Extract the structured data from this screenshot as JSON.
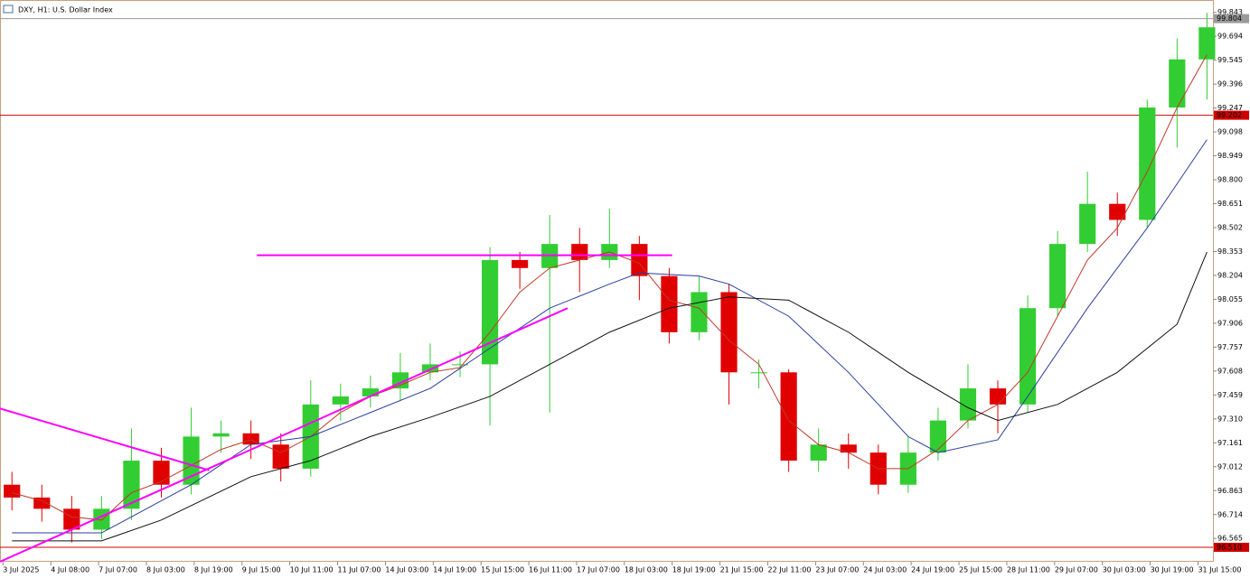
{
  "chart_data": {
    "type": "candlestick",
    "title": "DXY, H1:  U.S. Dollar Index",
    "up_color": "#32cd32",
    "down_color": "#e00000",
    "xlim": [
      -4,
      402
    ],
    "ylim": [
      96.42,
      99.92
    ],
    "x": [
      0,
      10,
      20,
      30,
      40,
      50,
      60,
      70,
      80,
      90,
      100,
      110,
      120,
      130,
      140,
      150,
      160,
      170,
      180,
      190,
      200,
      210,
      220,
      230,
      240,
      250,
      260,
      270,
      280,
      290,
      300,
      310,
      320,
      330,
      340,
      350,
      360,
      370,
      380,
      390,
      400
    ],
    "candles": {
      "open": [
        96.9,
        96.82,
        96.75,
        96.62,
        96.75,
        97.05,
        96.9,
        97.2,
        97.22,
        97.15,
        97.0,
        97.4,
        97.45,
        97.5,
        97.6,
        97.65,
        97.65,
        98.3,
        98.25,
        98.4,
        98.3,
        98.4,
        98.2,
        97.85,
        98.1,
        97.6,
        97.6,
        97.05,
        97.15,
        97.1,
        96.9,
        97.1,
        97.3,
        97.5,
        97.4,
        98.0,
        98.4,
        98.65,
        98.55,
        99.25,
        99.55
      ],
      "high": [
        96.98,
        96.9,
        96.83,
        96.83,
        97.25,
        97.13,
        97.38,
        97.3,
        97.3,
        97.22,
        97.55,
        97.53,
        97.58,
        97.72,
        97.78,
        97.73,
        98.38,
        98.35,
        98.58,
        98.5,
        98.62,
        98.45,
        98.25,
        98.2,
        98.15,
        97.68,
        97.62,
        97.25,
        97.22,
        97.15,
        97.2,
        97.38,
        97.65,
        97.55,
        98.08,
        98.48,
        98.85,
        98.72,
        99.3,
        99.68,
        99.84
      ],
      "low": [
        96.74,
        96.67,
        96.54,
        96.56,
        96.68,
        96.82,
        96.84,
        97.1,
        97.06,
        96.92,
        96.95,
        97.3,
        97.38,
        97.42,
        97.55,
        97.57,
        97.27,
        98.12,
        97.35,
        98.1,
        98.25,
        98.05,
        97.78,
        97.8,
        97.4,
        97.5,
        96.98,
        96.98,
        97.0,
        96.84,
        96.85,
        97.05,
        97.25,
        97.22,
        97.35,
        97.95,
        98.35,
        98.45,
        98.5,
        99.0,
        99.3
      ],
      "close": [
        96.82,
        96.75,
        96.62,
        96.75,
        97.05,
        96.9,
        97.2,
        97.22,
        97.15,
        97.0,
        97.4,
        97.45,
        97.5,
        97.6,
        97.65,
        97.65,
        98.3,
        98.25,
        98.4,
        98.3,
        98.4,
        98.2,
        97.85,
        98.1,
        97.6,
        97.6,
        97.05,
        97.15,
        97.1,
        96.9,
        97.1,
        97.3,
        97.5,
        97.4,
        98.0,
        98.4,
        98.65,
        98.55,
        99.25,
        99.55,
        99.75
      ]
    },
    "series": [
      {
        "color": "#c0392b",
        "x": [
          0,
          10,
          20,
          30,
          40,
          50,
          60,
          70,
          80,
          90,
          100,
          110,
          120,
          130,
          140,
          150,
          160,
          170,
          180,
          190,
          200,
          210,
          220,
          230,
          240,
          250,
          260,
          270,
          280,
          290,
          300,
          310,
          320,
          330,
          340,
          350,
          360,
          370,
          380,
          390,
          400
        ],
        "values": [
          96.85,
          96.8,
          96.7,
          96.68,
          96.85,
          96.92,
          97.02,
          97.12,
          97.18,
          97.1,
          97.2,
          97.35,
          97.45,
          97.52,
          97.6,
          97.63,
          97.85,
          98.1,
          98.25,
          98.3,
          98.35,
          98.28,
          98.05,
          98.0,
          97.8,
          97.65,
          97.3,
          97.15,
          97.1,
          97.0,
          97.0,
          97.12,
          97.3,
          97.4,
          97.6,
          97.95,
          98.3,
          98.5,
          98.85,
          99.25,
          99.58
        ]
      },
      {
        "color": "#2c3e9e",
        "x": [
          0,
          30,
          60,
          80,
          100,
          120,
          140,
          160,
          180,
          200,
          210,
          230,
          240,
          260,
          280,
          300,
          310,
          330,
          340,
          360,
          380,
          400
        ],
        "values": [
          96.6,
          96.6,
          96.9,
          97.15,
          97.2,
          97.35,
          97.5,
          97.75,
          98.0,
          98.15,
          98.22,
          98.2,
          98.15,
          97.95,
          97.6,
          97.2,
          97.1,
          97.18,
          97.45,
          98.0,
          98.5,
          99.05
        ]
      },
      {
        "color": "#111111",
        "x": [
          0,
          30,
          50,
          80,
          100,
          120,
          140,
          160,
          180,
          200,
          220,
          240,
          260,
          280,
          300,
          320,
          330,
          350,
          370,
          390,
          400
        ],
        "values": [
          96.55,
          96.55,
          96.68,
          96.95,
          97.05,
          97.2,
          97.32,
          97.45,
          97.65,
          97.85,
          98.0,
          98.07,
          98.05,
          97.85,
          97.6,
          97.38,
          97.3,
          97.4,
          97.6,
          97.9,
          98.35
        ]
      }
    ],
    "trendlines": [
      {
        "color": "#ff00ff",
        "x": [
          82,
          221
        ],
        "values": [
          98.33,
          98.33
        ]
      },
      {
        "color": "#ff00ff",
        "x": [
          -4,
          186
        ],
        "values": [
          96.42,
          98.0
        ]
      },
      {
        "color": "#ff00ff",
        "x": [
          -4,
          66
        ],
        "values": [
          97.375,
          96.99
        ]
      }
    ],
    "price_lines": [
      {
        "price": 99.804,
        "label": "99.804",
        "color": "#9a9a9a",
        "text_color": "#000000"
      },
      {
        "price": 99.202,
        "label": "99.202",
        "color": "#cc0000",
        "text_color": "#ffffff"
      },
      {
        "price": 96.51,
        "label": "96.510",
        "color": "#cc0000",
        "text_color": "#ffffff"
      }
    ],
    "yticks": [
      99.843,
      99.694,
      99.545,
      99.396,
      99.247,
      99.098,
      98.949,
      {
        "value": 98.8,
        "label": "98.800"
      },
      98.651,
      98.502,
      98.353,
      98.204,
      98.055,
      97.906,
      97.757,
      97.608,
      97.459,
      {
        "value": 97.31,
        "label": "97.310"
      },
      97.161,
      97.012,
      96.863,
      96.714,
      96.565
    ],
    "xticks": [
      {
        "value": -3,
        "label": "3 Jul 2025"
      },
      {
        "value": 13,
        "label": "4 Jul 08:00"
      },
      {
        "value": 29,
        "label": "7 Jul 07:00"
      },
      {
        "value": 45,
        "label": "8 Jul 03:00"
      },
      {
        "value": 61,
        "label": "8 Jul 19:00"
      },
      {
        "value": 77,
        "label": "9 Jul 15:00"
      },
      {
        "value": 93,
        "label": "10 Jul 11:00"
      },
      {
        "value": 109,
        "label": "11 Jul 07:00"
      },
      {
        "value": 125,
        "label": "14 Jul 03:00"
      },
      {
        "value": 141,
        "label": "14 Jul 19:00"
      },
      {
        "value": 157,
        "label": "15 Jul 15:00"
      },
      {
        "value": 173,
        "label": "16 Jul 11:00"
      },
      {
        "value": 189,
        "label": "17 Jul 07:00"
      },
      {
        "value": 205,
        "label": "18 Jul 03:00"
      },
      {
        "value": 221,
        "label": "18 Jul 19:00"
      },
      {
        "value": 237,
        "label": "21 Jul 15:00"
      },
      {
        "value": 253,
        "label": "22 Jul 11:00"
      },
      {
        "value": 269,
        "label": "23 Jul 07:00"
      },
      {
        "value": 285,
        "label": "24 Jul 03:00"
      },
      {
        "value": 301,
        "label": "24 Jul 19:00"
      },
      {
        "value": 317,
        "label": "25 Jul 15:00"
      },
      {
        "value": 333,
        "label": "28 Jul 11:00"
      },
      {
        "value": 349,
        "label": "29 Jul 07:00"
      },
      {
        "value": 365,
        "label": "30 Jul 03:00"
      },
      {
        "value": 381,
        "label": "30 Jul 19:00"
      },
      {
        "value": 397,
        "label": "31 Jul 15:00"
      }
    ]
  }
}
